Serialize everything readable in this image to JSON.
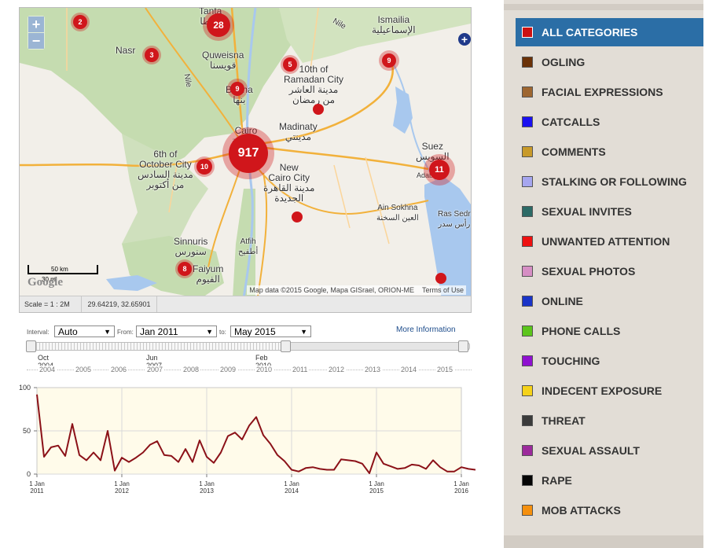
{
  "map": {
    "zoom_in": "+",
    "zoom_out": "−",
    "extra_button": "+",
    "places": [
      {
        "id": "tanta",
        "text": "Tanta\nطنطا"
      },
      {
        "id": "nasr",
        "text": "Nasr"
      },
      {
        "id": "quweisna",
        "text": "Quweisna\nقويسنا"
      },
      {
        "id": "ismailia",
        "text": "Ismailia\nالإسماعيلية"
      },
      {
        "id": "tenth",
        "text": "10th of\nRamadan City\nمدينة العاشر\nمن رمضان"
      },
      {
        "id": "benha",
        "text": "Benha\nبنها"
      },
      {
        "id": "nile1",
        "text": "Nile"
      },
      {
        "id": "nile2",
        "text": "Nile"
      },
      {
        "id": "cairo",
        "text": "Cairo\nالقاهرة"
      },
      {
        "id": "madinaty",
        "text": "Madinaty\nمدينتي"
      },
      {
        "id": "october",
        "text": "6th of\nOctober City\nمدينة السادس\nمن أكتوبر"
      },
      {
        "id": "newcairo",
        "text": "New\nCairo City\nمدينة القاهرة\nالجديدة"
      },
      {
        "id": "suez",
        "text": "Suez\nالسويس"
      },
      {
        "id": "adabiya",
        "text": "Adabiya"
      },
      {
        "id": "ainsokhna",
        "text": "Ain Sokhna\nالعين السخنة"
      },
      {
        "id": "rassedr",
        "text": "Ras Sedr\nرأس سدر"
      },
      {
        "id": "atfih",
        "text": "Atfih\nأطفيح"
      },
      {
        "id": "sinnuris",
        "text": "Sinnuris\nسنورس"
      },
      {
        "id": "faiyum",
        "text": "Faiyum\nالفيوم"
      }
    ],
    "clusters": [
      {
        "id": "c1",
        "count": "2"
      },
      {
        "id": "c2",
        "count": "28"
      },
      {
        "id": "c3",
        "count": "3"
      },
      {
        "id": "c4",
        "count": "5"
      },
      {
        "id": "c5",
        "count": "9"
      },
      {
        "id": "c6",
        "count": "9"
      },
      {
        "id": "c7",
        "count": "917"
      },
      {
        "id": "c8",
        "count": "10"
      },
      {
        "id": "c9",
        "count": "11"
      },
      {
        "id": "c10",
        "count": "8"
      }
    ],
    "scale_km": "50 km",
    "scale_mi": "30 mi",
    "google_logo": "Google",
    "credit": "Map data ©2015 Google, Mapa GISrael, ORION-ME",
    "terms": "Terms of Use",
    "footer_scale": "Scale = 1 : 2M",
    "footer_coords": "29.64219, 32.65901"
  },
  "timeline": {
    "interval_label": "Interval:",
    "interval_value": "Auto",
    "from_label": "From:",
    "from_value": "Jan 2011",
    "to_label": "to:",
    "to_value": "May 2015",
    "more_info": "More Information",
    "slider_ticks": [
      {
        "line1": "Oct",
        "line2": "2004"
      },
      {
        "line1": "Jun",
        "line2": "2007"
      },
      {
        "line1": "Feb",
        "line2": "2010"
      }
    ],
    "years": [
      "2004",
      "2005",
      "2006",
      "2007",
      "2008",
      "2009",
      "2010",
      "2011",
      "2012",
      "2013",
      "2014",
      "2015"
    ]
  },
  "chart_data": {
    "type": "line",
    "title": "",
    "xlabel": "",
    "ylabel": "",
    "ylim": [
      0,
      100
    ],
    "yticks": [
      "100",
      "50",
      "0"
    ],
    "xticks": [
      {
        "line1": "1 Jan",
        "line2": "2011"
      },
      {
        "line1": "1 Jan",
        "line2": "2012"
      },
      {
        "line1": "1 Jan",
        "line2": "2013"
      },
      {
        "line1": "1 Jan",
        "line2": "2014"
      },
      {
        "line1": "1 Jan",
        "line2": "2015"
      },
      {
        "line1": "1 Jan",
        "line2": "2016"
      }
    ],
    "x_start_year": 2011,
    "x_end_year": 2016,
    "line_color": "#8b1118",
    "series": [
      {
        "values": [
          92,
          20,
          31,
          33,
          21,
          58,
          22,
          16,
          25,
          16,
          50,
          4,
          19,
          14,
          19,
          25,
          34,
          38,
          22,
          21,
          14,
          29,
          14,
          39,
          20,
          13,
          25,
          44,
          48,
          40,
          56,
          66,
          45,
          35,
          22,
          15,
          5,
          3,
          7,
          8,
          6,
          5,
          5,
          17,
          16,
          15,
          12,
          1,
          25,
          12,
          9,
          6,
          7,
          11,
          10,
          6,
          16,
          8,
          3,
          3,
          8,
          6,
          5
        ]
      }
    ]
  },
  "categories": [
    {
      "label": "ALL CATEGORIES",
      "color": "#cc1111",
      "active": true
    },
    {
      "label": "OGLING",
      "color": "#6b3208",
      "active": false
    },
    {
      "label": "FACIAL EXPRESSIONS",
      "color": "#9e6630",
      "active": false
    },
    {
      "label": "CATCALLS",
      "color": "#1a10f0",
      "active": false
    },
    {
      "label": "COMMENTS",
      "color": "#c89a2a",
      "active": false
    },
    {
      "label": "STALKING OR FOLLOWING",
      "color": "#a6a6ef",
      "active": false
    },
    {
      "label": "SEXUAL INVITES",
      "color": "#2c6a66",
      "active": false
    },
    {
      "label": "UNWANTED ATTENTION",
      "color": "#ee1111",
      "active": false
    },
    {
      "label": "SEXUAL PHOTOS",
      "color": "#d68ec4",
      "active": false
    },
    {
      "label": "ONLINE",
      "color": "#1a34c8",
      "active": false
    },
    {
      "label": "PHONE CALLS",
      "color": "#5cc51c",
      "active": false
    },
    {
      "label": "TOUCHING",
      "color": "#8f10d0",
      "active": false
    },
    {
      "label": "INDECENT EXPOSURE",
      "color": "#f5d21a",
      "active": false
    },
    {
      "label": "THREAT",
      "color": "#3b3b3b",
      "active": false
    },
    {
      "label": "SEXUAL ASSAULT",
      "color": "#9c2a9c",
      "active": false
    },
    {
      "label": "RAPE",
      "color": "#050505",
      "active": false
    },
    {
      "label": "MOB ATTACKS",
      "color": "#f5900f",
      "active": false
    }
  ]
}
